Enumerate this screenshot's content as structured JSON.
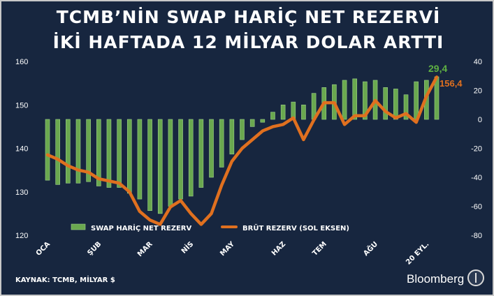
{
  "title_line1": "TCMB’NİN SWAP HARİÇ NET REZERVİ",
  "title_line2": "İKİ HAFTADA 12 MİLYAR DOLAR ARTTI",
  "source": "KAYNAK: TCMB, MİLYAR $",
  "brand": "Bloomberg",
  "colors": {
    "background": "#17263f",
    "bar": "#6aa84f",
    "line": "#e0701f",
    "text": "#ffffff",
    "label_bar": "#5fb043",
    "label_line": "#e0701f"
  },
  "chart_data": {
    "type": "bar+line",
    "x_tick_labels": [
      "OCA",
      "ŞUB",
      "MAR",
      "NİS",
      "MAY",
      "HAZ",
      "TEM",
      "AĞU",
      "20 EYL."
    ],
    "x_tick_index": [
      0,
      5,
      10,
      14,
      18,
      23,
      27,
      32,
      37
    ],
    "left_axis": {
      "ticks": [
        120,
        130,
        140,
        150,
        160
      ],
      "ylim": [
        120,
        160
      ]
    },
    "right_axis": {
      "ticks": [
        -80,
        -60,
        -40,
        -20,
        0,
        20,
        40
      ],
      "ylim": [
        -80,
        40
      ]
    },
    "series": [
      {
        "name": "SWAP HARİÇ NET REZERV",
        "type": "bar",
        "axis": "right",
        "values": [
          -42,
          -45,
          -44,
          -44,
          -43,
          -46,
          -47,
          -47,
          -51,
          -55,
          -63,
          -65,
          -60,
          -55,
          -53,
          -47,
          -40,
          -33,
          -24,
          -14,
          -5,
          -2,
          5,
          10,
          12,
          10,
          18,
          22,
          24,
          27,
          28,
          26,
          27,
          22,
          21,
          17,
          26,
          27,
          29.4
        ]
      },
      {
        "name": "BRÜT REZERV (SOL EKSEN)",
        "type": "line",
        "axis": "left",
        "values": [
          138.5,
          137.5,
          136,
          135,
          134.5,
          133,
          132.5,
          132,
          130,
          125.5,
          123.5,
          122.5,
          126.5,
          128,
          125,
          122.5,
          125,
          131.5,
          137,
          140,
          142,
          144,
          145,
          145.5,
          147,
          142,
          146.5,
          150.5,
          150.5,
          145.5,
          147.5,
          147.5,
          151,
          148.5,
          147,
          148,
          146,
          152,
          156.4
        ]
      }
    ],
    "end_labels": {
      "bar": "29,4",
      "line": "156,4"
    }
  }
}
